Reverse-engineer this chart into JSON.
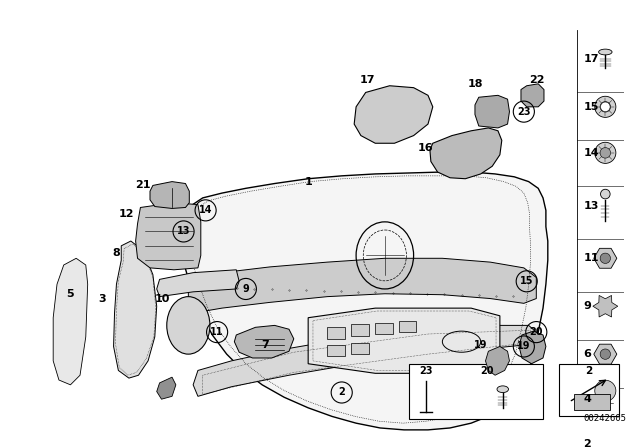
{
  "bg_color": "#ffffff",
  "line_color": "#000000",
  "fig_width": 6.4,
  "fig_height": 4.48,
  "dpi": 100,
  "diagram_id": "00242605"
}
